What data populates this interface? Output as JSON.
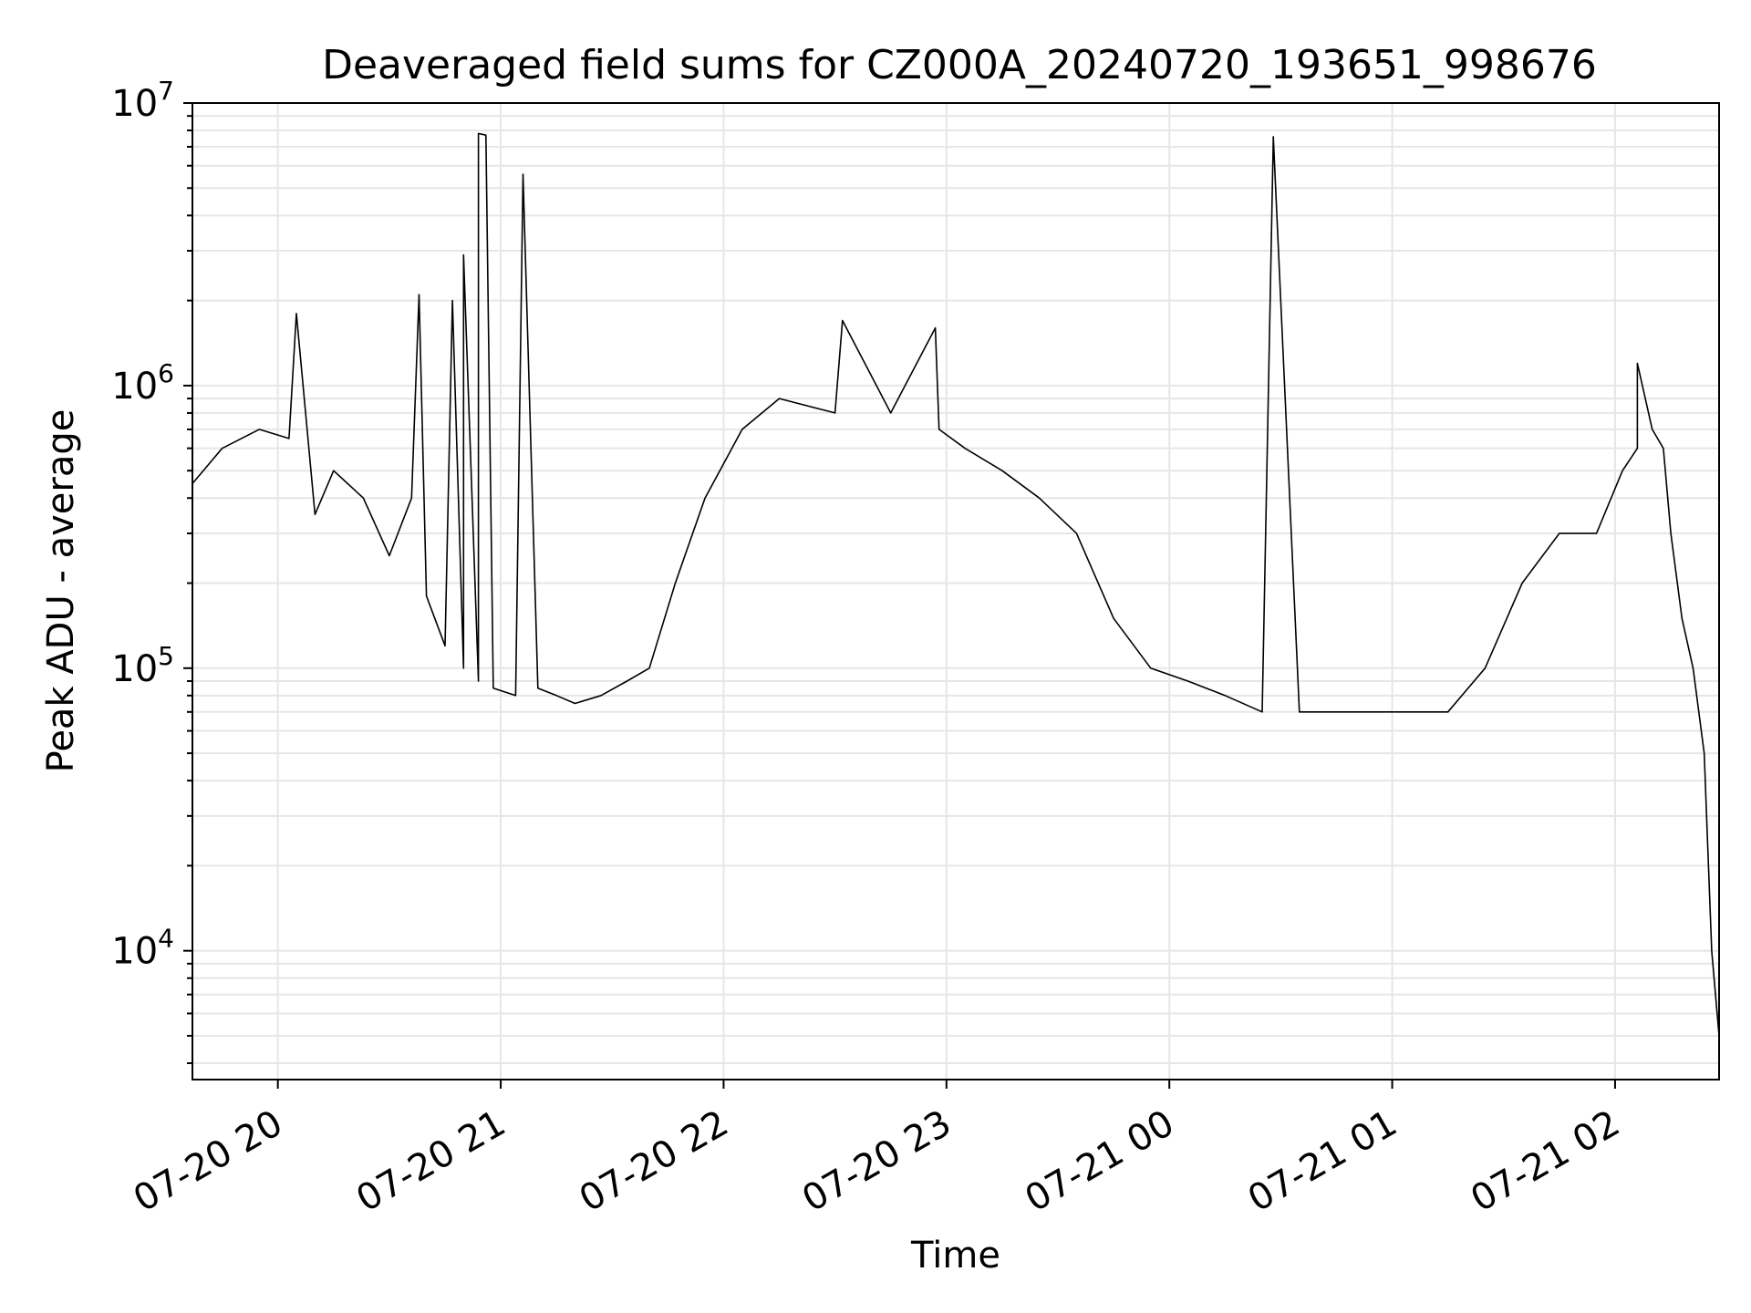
{
  "chart_data": {
    "type": "line",
    "title": "Deaveraged field sums for CZ000A_20240720_193651_998676",
    "xlabel": "Time",
    "ylabel": "Peak ADU - average",
    "yscale": "log",
    "ylim": [
      3500,
      10000000
    ],
    "xlim": [
      "2024-07-20 19:37",
      "2024-07-21 02:28"
    ],
    "x_ticks": [
      {
        "time": "2024-07-20 20:00",
        "label": "07-20 20"
      },
      {
        "time": "2024-07-20 21:00",
        "label": "07-20 21"
      },
      {
        "time": "2024-07-20 22:00",
        "label": "07-20 22"
      },
      {
        "time": "2024-07-20 23:00",
        "label": "07-20 23"
      },
      {
        "time": "2024-07-21 00:00",
        "label": "07-21 00"
      },
      {
        "time": "2024-07-21 01:00",
        "label": "07-21 01"
      },
      {
        "time": "2024-07-21 02:00",
        "label": "07-21 02"
      }
    ],
    "y_ticks": [
      {
        "value": 10000,
        "base": "10",
        "exp": "4"
      },
      {
        "value": 100000,
        "base": "10",
        "exp": "5"
      },
      {
        "value": 1000000,
        "base": "10",
        "exp": "6"
      },
      {
        "value": 10000000,
        "base": "10",
        "exp": "7"
      }
    ],
    "grid": true,
    "line_color": "#000000",
    "grid_color": "#e6e6e6",
    "series": [
      {
        "x": [
          "2024-07-20 19:37",
          "2024-07-20 19:45",
          "2024-07-20 19:55",
          "2024-07-20 20:03",
          "2024-07-20 20:10",
          "2024-07-20 20:15",
          "2024-07-20 20:23",
          "2024-07-20 20:30",
          "2024-07-20 20:36",
          "2024-07-20 20:40",
          "2024-07-20 20:45",
          "2024-07-20 20:50",
          "2024-07-20 20:54",
          "2024-07-20 20:58",
          "2024-07-20 21:04",
          "2024-07-20 21:10",
          "2024-07-20 21:15",
          "2024-07-20 21:20",
          "2024-07-20 21:27",
          "2024-07-20 21:34",
          "2024-07-20 21:40",
          "2024-07-20 21:47",
          "2024-07-20 21:55",
          "2024-07-20 22:05",
          "2024-07-20 22:15",
          "2024-07-20 22:30",
          "2024-07-20 22:45",
          "2024-07-20 22:58",
          "2024-07-20 23:05",
          "2024-07-20 23:15",
          "2024-07-20 23:25",
          "2024-07-20 23:35",
          "2024-07-20 23:45",
          "2024-07-20 23:55",
          "2024-07-21 00:05",
          "2024-07-21 00:15",
          "2024-07-21 00:25",
          "2024-07-21 00:28",
          "2024-07-21 00:35",
          "2024-07-21 00:45",
          "2024-07-21 00:55",
          "2024-07-21 01:05",
          "2024-07-21 01:15",
          "2024-07-21 01:25",
          "2024-07-21 01:35",
          "2024-07-21 01:45",
          "2024-07-21 01:55",
          "2024-07-21 02:02",
          "2024-07-21 02:06",
          "2024-07-21 02:10",
          "2024-07-21 02:13",
          "2024-07-21 02:15",
          "2024-07-21 02:18",
          "2024-07-21 02:21",
          "2024-07-21 02:24",
          "2024-07-21 02:26",
          "2024-07-21 02:28"
        ],
        "y": [
          450000,
          600000,
          700000,
          650000,
          350000,
          500000,
          400000,
          250000,
          400000,
          180000,
          120000,
          100000,
          90000,
          85000,
          80000,
          85000,
          80000,
          75000,
          80000,
          90000,
          100000,
          200000,
          400000,
          700000,
          900000,
          800000,
          800000,
          700000,
          600000,
          500000,
          400000,
          300000,
          150000,
          100000,
          90000,
          80000,
          70000,
          7500000,
          70000,
          70000,
          70000,
          70000,
          70000,
          100000,
          200000,
          300000,
          300000,
          500000,
          600000,
          700000,
          600000,
          300000,
          150000,
          100000,
          50000,
          10000,
          5000
        ]
      }
    ],
    "spikes": [
      {
        "x": "2024-07-20 20:05",
        "y": 1800000
      },
      {
        "x": "2024-07-20 20:38",
        "y": 2100000
      },
      {
        "x": "2024-07-20 20:47",
        "y": 2000000
      },
      {
        "x": "2024-07-20 20:50",
        "y": 2900000
      },
      {
        "x": "2024-07-20 20:54",
        "y": 7800000
      },
      {
        "x": "2024-07-20 20:56",
        "y": 7700000
      },
      {
        "x": "2024-07-20 21:06",
        "y": 5600000
      },
      {
        "x": "2024-07-20 22:32",
        "y": 1700000
      },
      {
        "x": "2024-07-20 22:57",
        "y": 1600000
      },
      {
        "x": "2024-07-21 00:28",
        "y": 7600000
      },
      {
        "x": "2024-07-21 02:06",
        "y": 1200000
      }
    ]
  }
}
